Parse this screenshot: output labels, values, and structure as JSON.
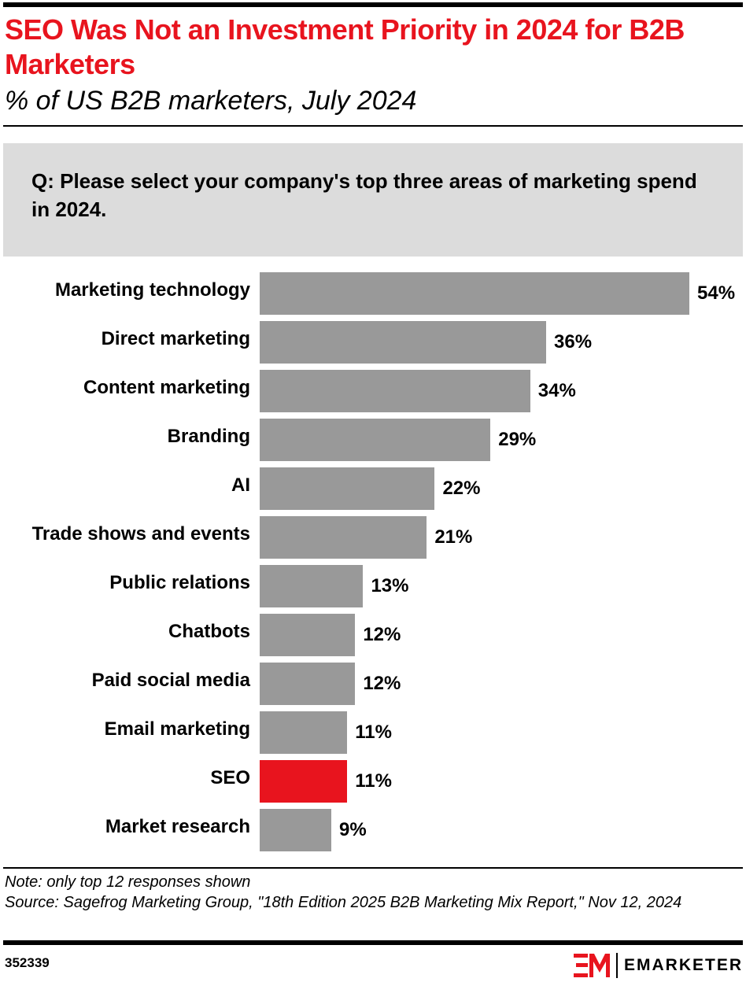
{
  "header": {
    "title": "SEO Was Not an Investment Priority in 2024 for B2B Marketers",
    "subtitle": "% of US B2B marketers, July 2024"
  },
  "question": "Q: Please select your company's top three areas of marketing spend in 2024.",
  "chart_data": {
    "type": "bar",
    "orientation": "horizontal",
    "categories": [
      "Marketing technology",
      "Direct marketing",
      "Content marketing",
      "Branding",
      "AI",
      "Trade shows and events",
      "Public relations",
      "Chatbots",
      "Paid social media",
      "Email marketing",
      "SEO",
      "Market research"
    ],
    "values": [
      54,
      36,
      34,
      29,
      22,
      21,
      13,
      12,
      12,
      11,
      11,
      9
    ],
    "value_labels": [
      "54%",
      "36%",
      "34%",
      "29%",
      "22%",
      "21%",
      "13%",
      "12%",
      "12%",
      "11%",
      "11%",
      "9%"
    ],
    "unit": "%",
    "highlight": "SEO",
    "colors": {
      "default": "#999999",
      "highlight": "#e8141e"
    },
    "grid": false,
    "xlim": [
      0,
      54
    ]
  },
  "footer": {
    "note": "Note: only top 12 responses shown",
    "source": "Source: Sagefrog Marketing Group, \"18th Edition 2025 B2B Marketing Mix Report,\" Nov 12, 2024",
    "chart_id": "352339",
    "brand": "EMARKETER"
  }
}
